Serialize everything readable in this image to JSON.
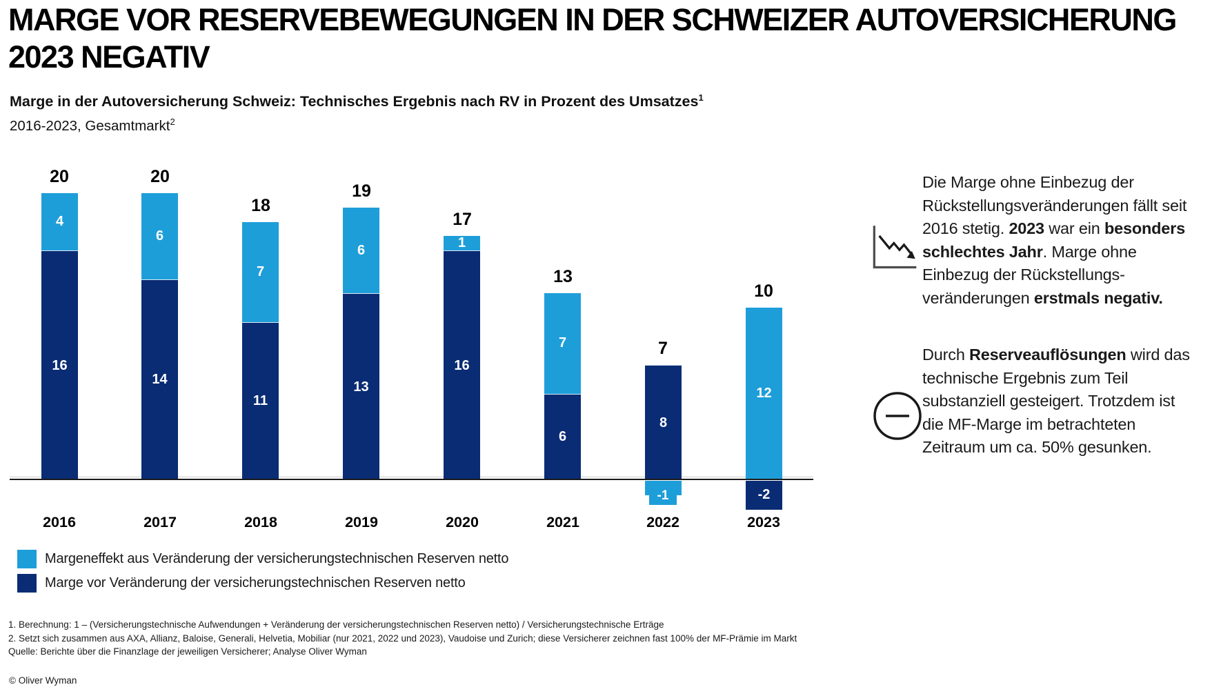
{
  "page": {
    "title": "MARGE VOR RESERVEBEWEGUNGEN IN DER SCHWEIZER AUTOVERSICHERUNG 2023 NEGATIV",
    "subtitle": "Marge in der Autoversicherung Schweiz: Technisches Ergebnis nach RV in Prozent des Umsatzes",
    "subtitle_sup": "1",
    "subtitle2": "2016-2023, Gesamtmarkt",
    "subtitle2_sup": "2",
    "copyright": "© Oliver Wyman"
  },
  "colors": {
    "light_blue": "#1E9ED9",
    "dark_blue": "#0A2C74",
    "axis": "#1a1a1a"
  },
  "chart_data": {
    "type": "stacked-bar",
    "title": "Marge in der Autoversicherung Schweiz: Technisches Ergebnis nach RV in Prozent des Umsatzes",
    "subtitle": "2016-2023, Gesamtmarkt",
    "categories": [
      "2016",
      "2017",
      "2018",
      "2019",
      "2020",
      "2021",
      "2022",
      "2023"
    ],
    "series": [
      {
        "name": "Margeneffekt aus Veränderung der versicherungstechnischen Reserven netto",
        "color": "#1E9ED9",
        "values": [
          4,
          6,
          7,
          6,
          1,
          7,
          -1,
          12
        ]
      },
      {
        "name": "Marge vor Veränderung der versicherungstechnischen Reserven netto",
        "color": "#0A2C74",
        "values": [
          16,
          14,
          11,
          13,
          16,
          6,
          8,
          -2
        ]
      }
    ],
    "totals": [
      20,
      20,
      18,
      19,
      17,
      13,
      7,
      10
    ],
    "ylabel": "Technisches Ergebnis nach RV in Prozent des Umsatzes",
    "baseline": 0,
    "grid": false,
    "legend_position": "bottom-left"
  },
  "legend": [
    {
      "label": "Margeneffekt aus Veränderung der versicherungstechnischen Reserven netto",
      "color": "#1E9ED9"
    },
    {
      "label": "Marge vor Veränderung der versicherungstechnischen Reserven netto",
      "color": "#0A2C74"
    }
  ],
  "insights": [
    {
      "icon": "declining-chart-icon",
      "segments": [
        {
          "t": "Die Marge ohne Einbezug der Rückstellungsveränderungen fällt seit 2016 stetig. ",
          "b": false
        },
        {
          "t": "2023",
          "b": true
        },
        {
          "t": " war ein ",
          "b": false
        },
        {
          "t": "besonders schlechtes Jahr",
          "b": true
        },
        {
          "t": ". Marge ohne Einbezug der Rückstellungs-veränderungen ",
          "b": false
        },
        {
          "t": "erstmals negativ.",
          "b": true
        }
      ]
    },
    {
      "icon": "minus-circle-icon",
      "segments": [
        {
          "t": "Durch ",
          "b": false
        },
        {
          "t": "Reserveauflösungen",
          "b": true
        },
        {
          "t": " wird das technische Ergebnis zum Teil substanziell gesteigert. Trotzdem ist die MF-Marge im betrachteten Zeitraum um ca. 50% gesunken.",
          "b": false
        }
      ]
    }
  ],
  "footnotes": [
    "1. Berechnung: 1 – (Versicherungstechnische Aufwendungen + Veränderung der versicherungstechnischen Reserven netto) / Versicherungstechnische Erträge",
    "2. Setzt sich zusammen aus AXA, Allianz, Baloise, Generali, Helvetia, Mobiliar (nur 2021, 2022 und 2023), Vaudoise und Zurich; diese Versicherer zeichnen fast 100% der MF-Prämie im Markt",
    "Quelle: Berichte über die Finanzlage der jeweiligen Versicherer; Analyse Oliver Wyman"
  ]
}
